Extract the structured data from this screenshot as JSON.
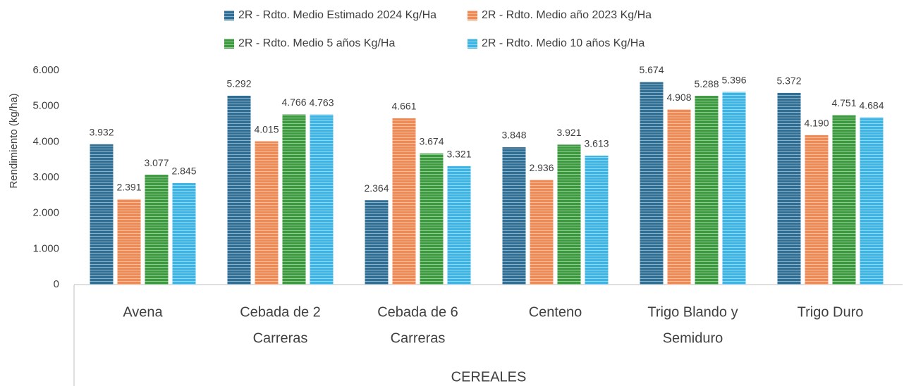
{
  "chart_data": {
    "type": "bar",
    "y_axis_label": "Rendimiento (kg/ha)",
    "x_axis_label": "CEREALES",
    "categories": [
      [
        "Avena"
      ],
      [
        "Cebada de 2",
        "Carreras"
      ],
      [
        "Cebada de 6",
        "Carreras"
      ],
      [
        "Centeno"
      ],
      [
        "Trigo Blando y",
        "Semiduro"
      ],
      [
        "Trigo Duro"
      ]
    ],
    "series": [
      {
        "name": "2R - Rdto. Medio Estimado 2024 Kg/Ha",
        "color": "#2f6f96",
        "values": [
          3932,
          5292,
          2364,
          3848,
          5674,
          5372
        ],
        "value_labels": [
          "3.932",
          "5.292",
          "2.364",
          "3.848",
          "5.674",
          "5.372"
        ]
      },
      {
        "name": "2R - Rdto. Medio año 2023 Kg/Ha",
        "color": "#f08a55",
        "values": [
          2391,
          4015,
          4661,
          2936,
          4908,
          4190
        ],
        "value_labels": [
          "2.391",
          "4.015",
          "4.661",
          "2.936",
          "4.908",
          "4.190"
        ]
      },
      {
        "name": "2R - Rdto. Medio 5 años Kg/Ha",
        "color": "#3b9a3e",
        "values": [
          3077,
          4766,
          3674,
          3921,
          5288,
          4751
        ],
        "value_labels": [
          "3.077",
          "4.766",
          "3.674",
          "3.921",
          "5.288",
          "4.751"
        ]
      },
      {
        "name": "2R - Rdto. Medio 10 años Kg/Ha",
        "color": "#3cb5e5",
        "values": [
          2845,
          4763,
          3321,
          3613,
          5396,
          4684
        ],
        "value_labels": [
          "2.845",
          "4.763",
          "3.321",
          "3.613",
          "5.396",
          "4.684"
        ]
      }
    ],
    "ylim": [
      0,
      6000
    ],
    "yticks": [
      0,
      {
        "value": 1000,
        "label": "1.000"
      },
      {
        "value": 2000,
        "label": "2.000"
      },
      {
        "value": 3000,
        "label": "3.000"
      },
      {
        "value": 4000,
        "label": "4.000"
      },
      {
        "value": 5000,
        "label": "5.000"
      },
      {
        "value": 6000,
        "label": "6.000"
      }
    ],
    "grid": false,
    "legend": "top"
  }
}
